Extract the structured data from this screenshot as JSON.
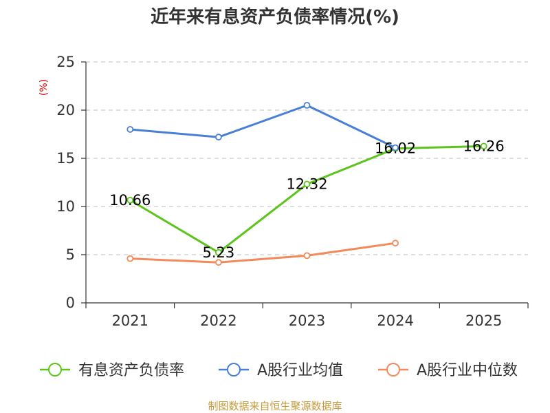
{
  "chart_data": {
    "type": "line",
    "title": "近年来有息资产负债率情况(%)",
    "ylabel": "(%)",
    "xlabel": "",
    "categories": [
      "2021",
      "2022",
      "2023",
      "2024",
      "2025"
    ],
    "ylim": [
      0,
      25
    ],
    "yticks": [
      0,
      5,
      10,
      15,
      20,
      25
    ],
    "grid": true,
    "legend_position": "bottom",
    "series": [
      {
        "name": "有息资产负债率",
        "color": "#5cc41a",
        "values": [
          10.66,
          5.23,
          12.32,
          16.02,
          16.26
        ],
        "labels": [
          "10.66",
          "5.23",
          "12.32",
          "16.02",
          "16.26"
        ]
      },
      {
        "name": "A股行业均值",
        "color": "#4a7fd6",
        "values": [
          18.0,
          17.2,
          20.5,
          16.1,
          null
        ]
      },
      {
        "name": "A股行业中位数",
        "color": "#f28a5a",
        "values": [
          4.6,
          4.2,
          4.9,
          6.2,
          null
        ]
      }
    ],
    "source": "制图数据来自恒生聚源数据库"
  }
}
